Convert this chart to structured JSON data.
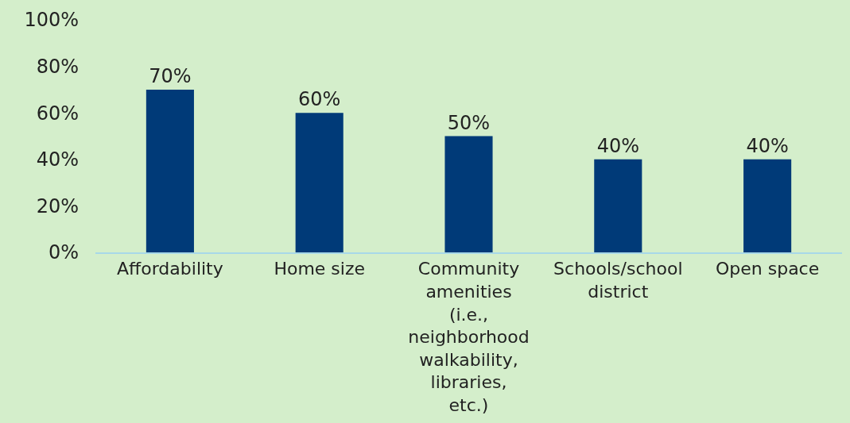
{
  "chart_data": {
    "type": "bar",
    "categories": [
      "Affordability",
      "Home size",
      "Community amenities (i.e., neighborhood walkability, libraries, etc.)",
      "Schools/school district",
      "Open space"
    ],
    "values": [
      70,
      60,
      50,
      40,
      40
    ],
    "value_labels": [
      "70%",
      "60%",
      "50%",
      "40%",
      "40%"
    ],
    "color": "#003a78",
    "ylim": [
      0,
      100
    ],
    "yticks": [
      {
        "value": 0,
        "label": "0%"
      },
      {
        "value": 20,
        "label": "20%"
      },
      {
        "value": 40,
        "label": "40%"
      },
      {
        "value": 60,
        "label": "60%"
      },
      {
        "value": 80,
        "label": "80%"
      },
      {
        "value": 100,
        "label": "100%"
      }
    ],
    "grid": false,
    "legend": false
  }
}
